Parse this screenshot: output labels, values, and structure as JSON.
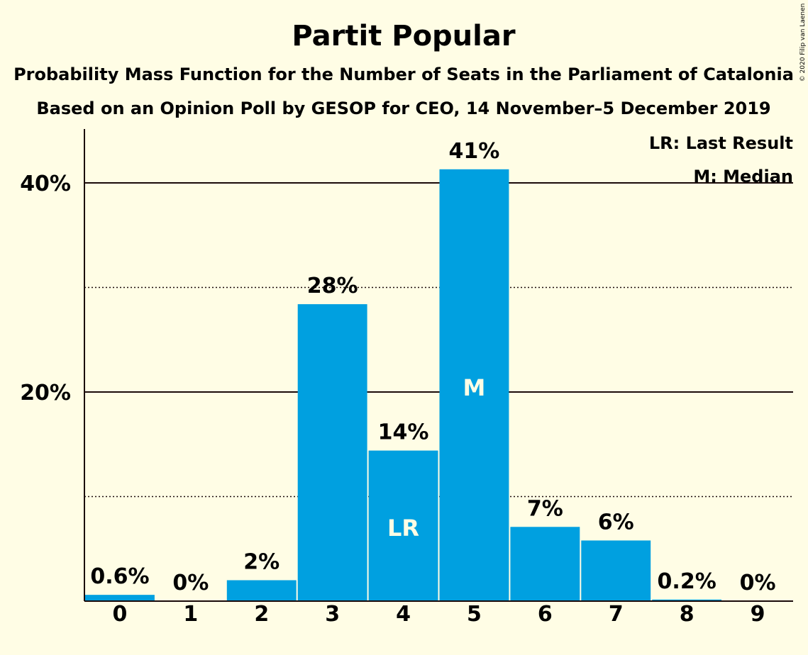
{
  "chart_data": {
    "type": "bar",
    "title": "Partit Popular",
    "subtitle_1": "Probability Mass Function for the Number of Seats in the Parliament of Catalonia",
    "subtitle_2": "Based on an Opinion Poll by GESOP for CEO, 14 November–5 December 2019",
    "categories": [
      "0",
      "1",
      "2",
      "3",
      "4",
      "5",
      "6",
      "7",
      "8",
      "9"
    ],
    "values": [
      0.6,
      0,
      2,
      28.4,
      14.4,
      41.3,
      7.1,
      5.8,
      0.15,
      0
    ],
    "labels": [
      "0.6%",
      "0%",
      "2%",
      "28%",
      "14%",
      "41%",
      "7%",
      "6%",
      "0.2%",
      "0%"
    ],
    "ylim": [
      0,
      45
    ],
    "y_ticks": [
      {
        "value": 20,
        "label": "20%"
      },
      {
        "value": 40,
        "label": "40%"
      }
    ],
    "gridlines_solid": [
      20,
      40
    ],
    "gridlines_dotted": [
      10,
      30
    ],
    "last_result_index": 4,
    "median_index": 5,
    "marker_lr": "LR",
    "marker_m": "M",
    "legend": [
      "LR: Last Result",
      "M: Median"
    ],
    "legend_position": "top-right",
    "bar_color": "#00A0E0",
    "copyright": "© 2020 Filip van Laenen"
  }
}
